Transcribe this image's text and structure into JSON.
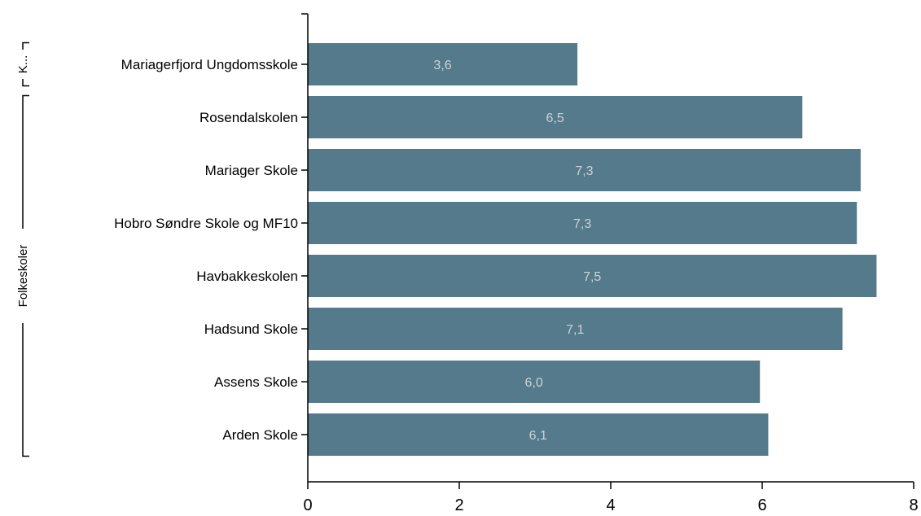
{
  "chart_data": {
    "type": "bar",
    "orientation": "horizontal",
    "title": "",
    "xlabel": "",
    "ylabel": "",
    "xlim": [
      0,
      8
    ],
    "x_ticks": [
      "0",
      "2",
      "4",
      "6",
      "8"
    ],
    "grid": false,
    "legend": "none",
    "bar_color": "#557a8c",
    "label_color": "#c9d3d9",
    "groups": [
      {
        "label": "K...",
        "categories": [
          "Mariagerfjord Ungdomsskole"
        ]
      },
      {
        "label": "Folkeskoler",
        "categories": [
          "Rosendalskolen",
          "Mariager Skole",
          "Hobro Søndre Skole og MF10",
          "Havbakkeskolen",
          "Hadsund Skole",
          "Assens Skole",
          "Arden Skole"
        ]
      }
    ],
    "categories": [
      "Mariagerfjord Ungdomsskole",
      "Rosendalskolen",
      "Mariager Skole",
      "Hobro Søndre Skole og MF10",
      "Havbakkeskolen",
      "Hadsund Skole",
      "Assens Skole",
      "Arden Skole"
    ],
    "values": [
      3.56,
      6.53,
      7.3,
      7.25,
      7.51,
      7.06,
      5.97,
      6.08
    ],
    "data_labels": [
      "3,6",
      "6,5",
      "7,3",
      "7,3",
      "7,5",
      "7,1",
      "6,0",
      "6,1"
    ]
  }
}
